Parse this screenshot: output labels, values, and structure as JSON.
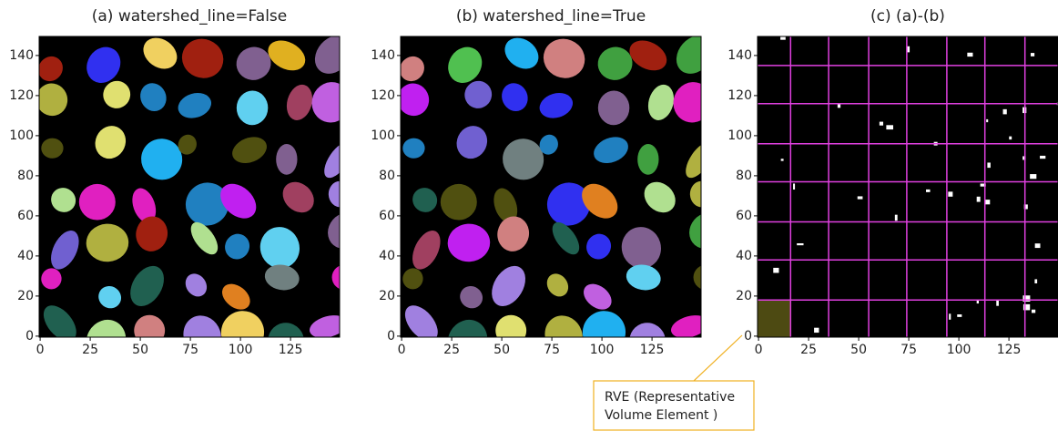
{
  "chart_data": [
    {
      "type": "image",
      "title": "(a) watershed_line=False",
      "colormap": "random-labels",
      "xlim": [
        -0.5,
        149.5
      ],
      "ylim": [
        -0.5,
        149.5
      ],
      "xticks": [
        0,
        25,
        50,
        75,
        100,
        125
      ],
      "yticks": [
        0,
        20,
        40,
        60,
        80,
        100,
        120,
        140
      ]
    },
    {
      "type": "image",
      "title": "(b) watershed_line=True",
      "colormap": "random-labels",
      "xlim": [
        -0.5,
        149.5
      ],
      "ylim": [
        -0.5,
        149.5
      ],
      "xticks": [
        0,
        25,
        50,
        75,
        100,
        125
      ],
      "yticks": [
        0,
        20,
        40,
        60,
        80,
        100,
        120,
        140
      ]
    },
    {
      "type": "image",
      "title": "(c) (a)-(b)",
      "colormap": "binary-difference",
      "xlim": [
        -0.5,
        149.5
      ],
      "ylim": [
        -0.5,
        149.5
      ],
      "xticks": [
        0,
        25,
        50,
        75,
        100,
        125
      ],
      "yticks": [
        0,
        20,
        40,
        60,
        80,
        100,
        120,
        140
      ],
      "vlines": [
        16,
        35,
        55,
        74,
        94,
        113,
        133
      ],
      "hlines": [
        18,
        38,
        57,
        77,
        96,
        116,
        135
      ],
      "line_color": "#e040e0",
      "highlight": {
        "x": [
          -0.5,
          16
        ],
        "y": [
          -0.5,
          18
        ],
        "color": "#4d4a12"
      },
      "annotation": {
        "lines": [
          "RVE (Representative",
          "Volume Element )"
        ],
        "color": "#f0b020"
      }
    }
  ]
}
